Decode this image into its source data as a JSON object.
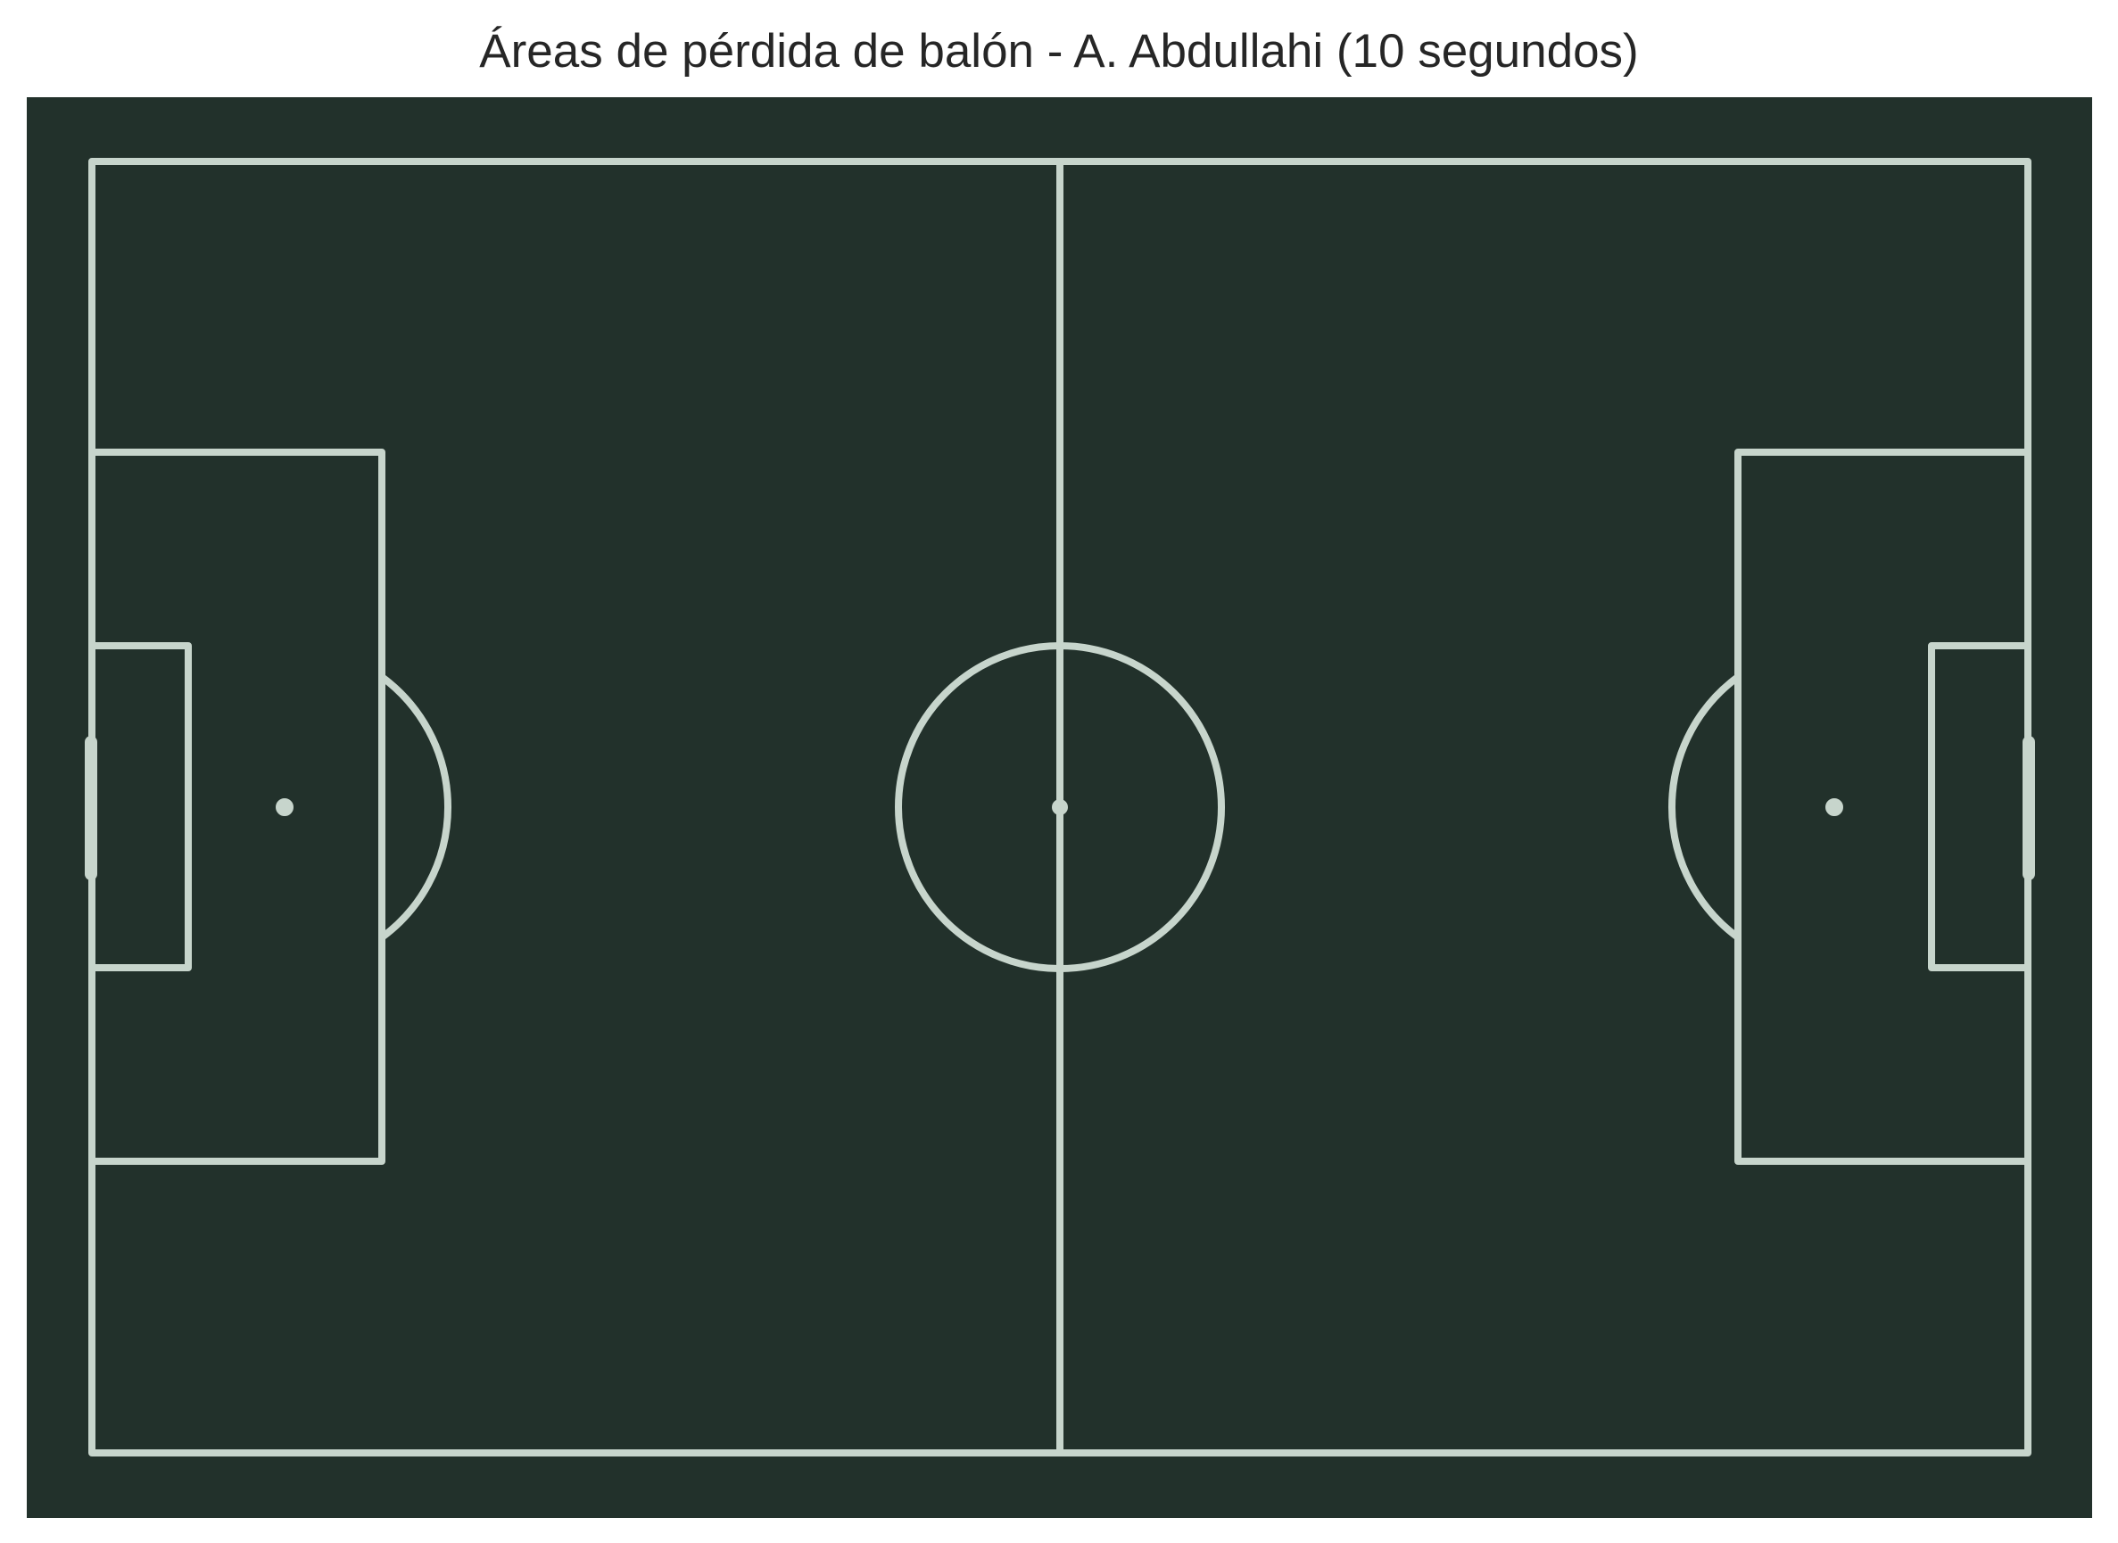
{
  "chart_data": {
    "type": "scatter",
    "title": "Áreas de pérdida de balón - A. Abdullahi (10 segundos)",
    "pitch": {
      "length": 120,
      "width": 80,
      "background_color": "#22312b",
      "line_color": "#c7d5cc"
    },
    "series": []
  }
}
